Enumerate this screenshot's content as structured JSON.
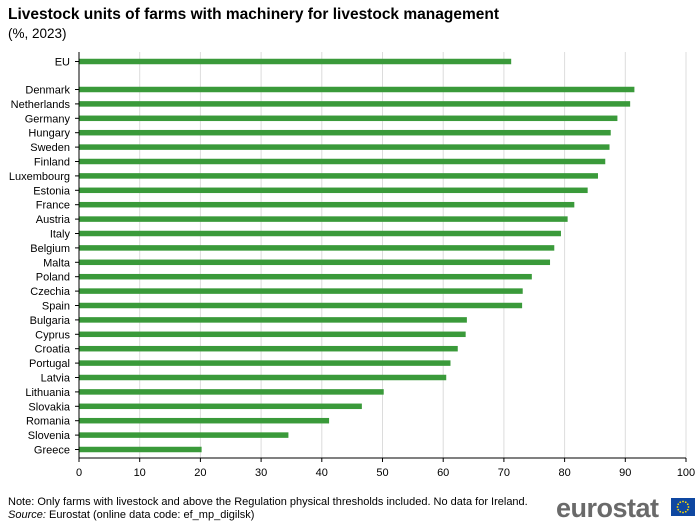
{
  "header": {
    "title": "Livestock units of farms with machinery for livestock management",
    "subtitle": "(%, 2023)"
  },
  "footer": {
    "note": "Note: Only farms with livestock and above the Regulation physical thresholds included. No data for Ireland.",
    "source_label": "Source:",
    "source_text": " Eurostat (online data code: ef_mp_digilsk)"
  },
  "logo": {
    "text": "eurostat",
    "flag_icon": "eu-flag-icon"
  },
  "colors": {
    "bar": "#3a9a3a",
    "grid": "#dcdcdc",
    "axis": "#000000",
    "flag_bg": "#0e47a1",
    "flag_star": "#ffdd00"
  },
  "chart_data": {
    "type": "bar",
    "orientation": "horizontal",
    "categories": [
      "EU",
      "Denmark",
      "Netherlands",
      "Germany",
      "Hungary",
      "Sweden",
      "Finland",
      "Luxembourg",
      "Estonia",
      "France",
      "Austria",
      "Italy",
      "Belgium",
      "Malta",
      "Poland",
      "Czechia",
      "Spain",
      "Bulgaria",
      "Cyprus",
      "Croatia",
      "Portugal",
      "Latvia",
      "Lithuania",
      "Slovakia",
      "Romania",
      "Slovenia",
      "Greece"
    ],
    "values": [
      71.2,
      91.5,
      90.8,
      88.7,
      87.6,
      87.4,
      86.7,
      85.5,
      83.8,
      81.6,
      80.5,
      79.4,
      78.3,
      77.6,
      74.6,
      73.1,
      73.0,
      63.9,
      63.7,
      62.4,
      61.2,
      60.5,
      50.2,
      46.6,
      41.2,
      34.5,
      20.2
    ],
    "xlim": [
      0,
      100
    ],
    "xticks": [
      0,
      10,
      20,
      30,
      40,
      50,
      60,
      70,
      80,
      90,
      100
    ],
    "grid": true,
    "legend": "none"
  }
}
